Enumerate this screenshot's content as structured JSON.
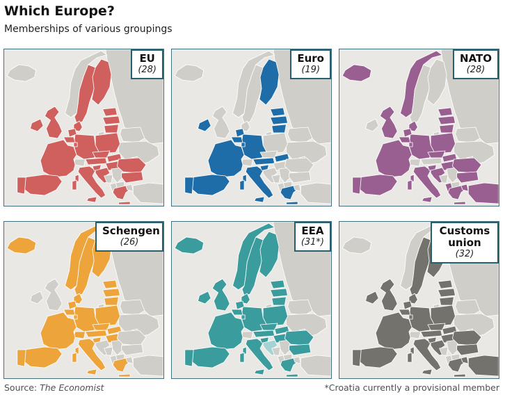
{
  "header": {
    "title": "Which Europe?",
    "subtitle": "Memberships of various groupings"
  },
  "footer": {
    "source_prefix": "Source: ",
    "source_name": "The Economist",
    "footnote": "*Croatia currently a provisional member"
  },
  "colors": {
    "sea": "#e9e8e4",
    "nonmember": "#cfcec9",
    "country_border": "#ffffff",
    "panel_frame": "#40707f",
    "label_border": "#26606f"
  },
  "panels": [
    {
      "id": "eu",
      "label": "EU",
      "count": "(28)",
      "color": "#d0605e",
      "members": [
        "pt",
        "es",
        "fr",
        "ie",
        "uk",
        "be",
        "nl",
        "lu",
        "de",
        "dk",
        "se",
        "fi",
        "ee",
        "lv",
        "lt",
        "pl",
        "cz",
        "sk",
        "at",
        "hu",
        "si",
        "hr",
        "it",
        "ro",
        "bg",
        "gr"
      ]
    },
    {
      "id": "euro",
      "label": "Euro",
      "count": "(19)",
      "color": "#1e6ca8",
      "members": [
        "pt",
        "es",
        "fr",
        "ie",
        "be",
        "nl",
        "lu",
        "de",
        "fi",
        "ee",
        "lv",
        "lt",
        "sk",
        "at",
        "si",
        "it",
        "gr"
      ]
    },
    {
      "id": "nato",
      "label": "NATO",
      "count": "(28)",
      "color": "#985f90",
      "members": [
        "is",
        "no",
        "dk",
        "uk",
        "pt",
        "es",
        "fr",
        "be",
        "nl",
        "lu",
        "de",
        "it",
        "gr",
        "tr",
        "pl",
        "cz",
        "sk",
        "hu",
        "ro",
        "bg",
        "ee",
        "lv",
        "lt",
        "si",
        "hr",
        "al"
      ]
    },
    {
      "id": "schengen",
      "label": "Schengen",
      "count": "(26)",
      "color": "#eca43b",
      "members": [
        "is",
        "no",
        "se",
        "fi",
        "dk",
        "de",
        "nl",
        "be",
        "lu",
        "fr",
        "es",
        "pt",
        "it",
        "ch",
        "at",
        "cz",
        "sk",
        "pl",
        "hu",
        "si",
        "ee",
        "lv",
        "lt",
        "gr"
      ]
    },
    {
      "id": "eea",
      "label": "EEA",
      "count": "(31*)",
      "color": "#3b9c9e",
      "partial": {
        "hr": "#a5d2d2"
      },
      "members": [
        "pt",
        "es",
        "fr",
        "ie",
        "uk",
        "be",
        "nl",
        "lu",
        "de",
        "dk",
        "se",
        "fi",
        "ee",
        "lv",
        "lt",
        "pl",
        "cz",
        "sk",
        "at",
        "hu",
        "si",
        "it",
        "ro",
        "bg",
        "gr",
        "is",
        "no"
      ]
    },
    {
      "id": "customs",
      "label": "Customs union",
      "count": "(32)",
      "color": "#73726c",
      "members": [
        "pt",
        "es",
        "fr",
        "ie",
        "uk",
        "be",
        "nl",
        "lu",
        "de",
        "dk",
        "se",
        "fi",
        "ee",
        "lv",
        "lt",
        "pl",
        "cz",
        "sk",
        "at",
        "hu",
        "si",
        "hr",
        "it",
        "ro",
        "bg",
        "gr",
        "tr"
      ]
    }
  ]
}
